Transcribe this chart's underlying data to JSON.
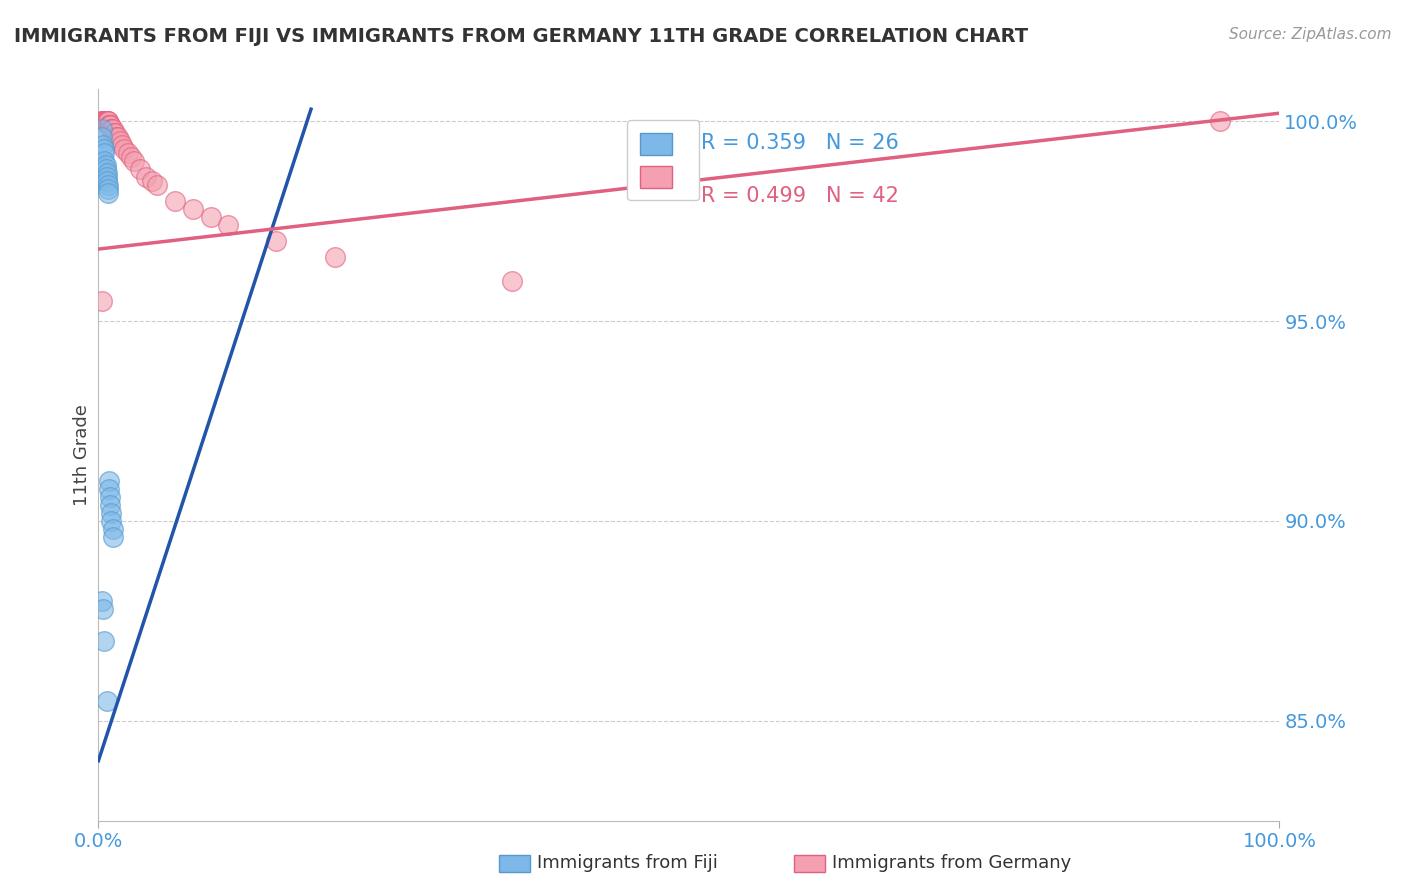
{
  "title": "IMMIGRANTS FROM FIJI VS IMMIGRANTS FROM GERMANY 11TH GRADE CORRELATION CHART",
  "source": "Source: ZipAtlas.com",
  "ylabel": "11th Grade",
  "xlim": [
    0.0,
    1.0
  ],
  "ylim": [
    0.825,
    1.008
  ],
  "yticks": [
    0.85,
    0.9,
    0.95,
    1.0
  ],
  "ytick_labels": [
    "85.0%",
    "90.0%",
    "95.0%",
    "100.0%"
  ],
  "legend_fiji_r": "R = 0.359",
  "legend_fiji_n": "N = 26",
  "legend_germany_r": "R = 0.499",
  "legend_germany_n": "N = 42",
  "fiji_color": "#7EB8E8",
  "fiji_edge_color": "#5599CC",
  "germany_color": "#F4A0B0",
  "germany_edge_color": "#E06080",
  "fiji_line_color": "#2255AA",
  "germany_line_color": "#E06080",
  "background_color": "#FFFFFF",
  "grid_color": "#CCCCCC",
  "axis_label_color": "#4499DD",
  "title_color": "#333333",
  "fiji_scatter_x": [
    0.003,
    0.003,
    0.004,
    0.005,
    0.005,
    0.005,
    0.006,
    0.006,
    0.007,
    0.007,
    0.007,
    0.008,
    0.008,
    0.008,
    0.009,
    0.009,
    0.01,
    0.01,
    0.011,
    0.011,
    0.012,
    0.012,
    0.003,
    0.004,
    0.005,
    0.007
  ],
  "fiji_scatter_y": [
    0.998,
    0.996,
    0.994,
    0.993,
    0.992,
    0.99,
    0.989,
    0.988,
    0.987,
    0.986,
    0.985,
    0.984,
    0.983,
    0.982,
    0.91,
    0.908,
    0.906,
    0.904,
    0.902,
    0.9,
    0.898,
    0.896,
    0.88,
    0.878,
    0.87,
    0.855
  ],
  "germany_scatter_x": [
    0.003,
    0.003,
    0.004,
    0.004,
    0.005,
    0.005,
    0.006,
    0.006,
    0.007,
    0.007,
    0.008,
    0.008,
    0.009,
    0.009,
    0.01,
    0.01,
    0.011,
    0.011,
    0.012,
    0.013,
    0.014,
    0.015,
    0.017,
    0.018,
    0.02,
    0.022,
    0.025,
    0.028,
    0.03,
    0.035,
    0.04,
    0.045,
    0.05,
    0.065,
    0.08,
    0.095,
    0.11,
    0.15,
    0.2,
    0.35,
    0.95,
    0.003
  ],
  "germany_scatter_y": [
    1.0,
    1.0,
    1.0,
    1.0,
    1.0,
    1.0,
    1.0,
    1.0,
    1.0,
    1.0,
    1.0,
    1.0,
    0.999,
    0.999,
    0.999,
    0.999,
    0.998,
    0.998,
    0.998,
    0.997,
    0.997,
    0.996,
    0.996,
    0.995,
    0.994,
    0.993,
    0.992,
    0.991,
    0.99,
    0.988,
    0.986,
    0.985,
    0.984,
    0.98,
    0.978,
    0.976,
    0.974,
    0.97,
    0.966,
    0.96,
    1.0,
    0.955
  ],
  "fiji_trendline_x": [
    0.0,
    0.18
  ],
  "fiji_trendline_y": [
    0.84,
    1.003
  ],
  "germany_trendline_x": [
    0.0,
    1.0
  ],
  "germany_trendline_y": [
    0.968,
    1.002
  ]
}
